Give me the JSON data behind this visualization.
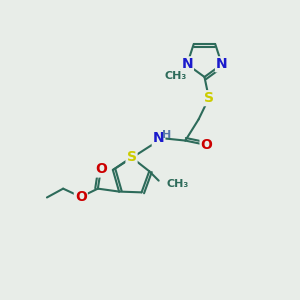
{
  "bg_color": "#e8ede8",
  "bond_color": "#2d6b5a",
  "bond_width": 1.5,
  "atom_colors": {
    "N": "#1a1acc",
    "S": "#cccc00",
    "O": "#cc0000",
    "H": "#5577aa",
    "C": "#2d6b5a"
  },
  "figsize": [
    3.0,
    3.0
  ],
  "dpi": 100
}
